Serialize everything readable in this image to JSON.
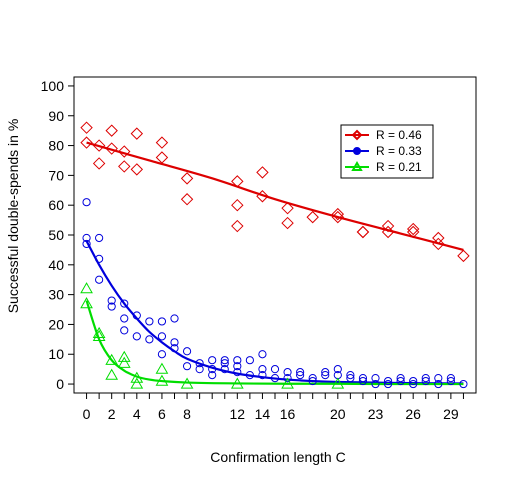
{
  "chart_data": {
    "type": "scatter",
    "xlabel": "Confirmation length C",
    "ylabel": "Successful double-spends in %",
    "xlim": [
      -1,
      31
    ],
    "ylim": [
      -3,
      103
    ],
    "x_ticks": [
      0,
      2,
      4,
      6,
      8,
      12,
      14,
      16,
      20,
      23,
      26,
      29
    ],
    "x_tick_labels": [
      "0",
      "2",
      "4",
      "6",
      "8",
      "12",
      "14",
      "16",
      "20",
      "23",
      "26",
      "29"
    ],
    "y_ticks": [
      0,
      10,
      20,
      30,
      40,
      50,
      60,
      70,
      80,
      90,
      100
    ],
    "y_tick_labels": [
      "0",
      "10",
      "20",
      "30",
      "40",
      "50",
      "60",
      "70",
      "80",
      "90",
      "100"
    ],
    "grid": false,
    "legend_position": "top-right",
    "legend": [
      {
        "label": "R = 0.46",
        "color": "#dd0000",
        "marker": "diamond"
      },
      {
        "label": "R = 0.33",
        "color": "#0000dd",
        "marker": "circle"
      },
      {
        "label": "R = 0.21",
        "color": "#00dd00",
        "marker": "triangle"
      }
    ],
    "series": [
      {
        "color": "#dd0000",
        "marker": "diamond",
        "points": [
          [
            0,
            86
          ],
          [
            0,
            81
          ],
          [
            1,
            80
          ],
          [
            1,
            74
          ],
          [
            2,
            85
          ],
          [
            2,
            79
          ],
          [
            3,
            78
          ],
          [
            3,
            73
          ],
          [
            4,
            84
          ],
          [
            4,
            72
          ],
          [
            6,
            81
          ],
          [
            6,
            76
          ],
          [
            8,
            69
          ],
          [
            8,
            62
          ],
          [
            12,
            68
          ],
          [
            12,
            60
          ],
          [
            12,
            53
          ],
          [
            14,
            71
          ],
          [
            14,
            63
          ],
          [
            16,
            59
          ],
          [
            16,
            54
          ],
          [
            18,
            56
          ],
          [
            20,
            57
          ],
          [
            20,
            56
          ],
          [
            22,
            51
          ],
          [
            22,
            51
          ],
          [
            24,
            53
          ],
          [
            24,
            51
          ],
          [
            26,
            52
          ],
          [
            26,
            51
          ],
          [
            28,
            49
          ],
          [
            28,
            47
          ],
          [
            30,
            43
          ]
        ],
        "fit": [
          [
            0,
            81
          ],
          [
            5,
            75
          ],
          [
            10,
            69
          ],
          [
            15,
            62
          ],
          [
            20,
            56
          ],
          [
            25,
            50.5
          ],
          [
            30,
            45
          ]
        ]
      },
      {
        "color": "#0000dd",
        "marker": "circle",
        "points": [
          [
            0,
            61
          ],
          [
            0,
            49
          ],
          [
            0,
            47
          ],
          [
            1,
            49
          ],
          [
            1,
            42
          ],
          [
            1,
            35
          ],
          [
            2,
            28
          ],
          [
            2,
            26
          ],
          [
            3,
            27
          ],
          [
            3,
            22
          ],
          [
            3,
            18
          ],
          [
            4,
            23
          ],
          [
            4,
            16
          ],
          [
            5,
            21
          ],
          [
            5,
            15
          ],
          [
            6,
            21
          ],
          [
            6,
            16
          ],
          [
            6,
            10
          ],
          [
            7,
            22
          ],
          [
            7,
            14
          ],
          [
            7,
            12
          ],
          [
            8,
            11
          ],
          [
            8,
            6
          ],
          [
            9,
            7
          ],
          [
            9,
            5
          ],
          [
            10,
            8
          ],
          [
            10,
            5
          ],
          [
            10,
            3
          ],
          [
            11,
            8
          ],
          [
            11,
            7
          ],
          [
            11,
            5
          ],
          [
            12,
            8
          ],
          [
            12,
            6
          ],
          [
            12,
            4
          ],
          [
            13,
            8
          ],
          [
            13,
            3
          ],
          [
            14,
            10
          ],
          [
            14,
            5
          ],
          [
            14,
            3
          ],
          [
            15,
            5
          ],
          [
            15,
            2
          ],
          [
            16,
            4
          ],
          [
            16,
            2
          ],
          [
            17,
            3
          ],
          [
            17,
            4
          ],
          [
            18,
            2
          ],
          [
            18,
            1
          ],
          [
            19,
            4
          ],
          [
            19,
            3
          ],
          [
            20,
            5
          ],
          [
            20,
            3
          ],
          [
            21,
            2
          ],
          [
            21,
            3
          ],
          [
            22,
            2
          ],
          [
            22,
            1
          ],
          [
            23,
            2
          ],
          [
            23,
            0
          ],
          [
            24,
            1
          ],
          [
            24,
            0
          ],
          [
            25,
            2
          ],
          [
            25,
            1
          ],
          [
            26,
            1
          ],
          [
            26,
            0
          ],
          [
            27,
            2
          ],
          [
            27,
            1
          ],
          [
            28,
            2
          ],
          [
            28,
            0
          ],
          [
            29,
            1
          ],
          [
            29,
            2
          ],
          [
            30,
            0
          ]
        ],
        "fit": [
          [
            0,
            48
          ],
          [
            1,
            40
          ],
          [
            2,
            33
          ],
          [
            3,
            27
          ],
          [
            4,
            22
          ],
          [
            5,
            17.5
          ],
          [
            6,
            14
          ],
          [
            7,
            11
          ],
          [
            8,
            8.5
          ],
          [
            10,
            5.5
          ],
          [
            12,
            3.5
          ],
          [
            14,
            2.3
          ],
          [
            16,
            1.5
          ],
          [
            18,
            1
          ],
          [
            20,
            0.7
          ],
          [
            24,
            0.4
          ],
          [
            30,
            0.2
          ]
        ]
      },
      {
        "color": "#00dd00",
        "marker": "triangle",
        "points": [
          [
            0,
            32
          ],
          [
            0,
            27
          ],
          [
            1,
            17
          ],
          [
            1,
            16
          ],
          [
            2,
            8
          ],
          [
            2,
            3
          ],
          [
            3,
            9
          ],
          [
            3,
            7
          ],
          [
            4,
            2
          ],
          [
            4,
            0
          ],
          [
            6,
            5
          ],
          [
            6,
            1
          ],
          [
            8,
            0
          ],
          [
            12,
            0
          ],
          [
            16,
            0
          ],
          [
            20,
            0
          ]
        ],
        "fit": [
          [
            0,
            28
          ],
          [
            1,
            15
          ],
          [
            2,
            8
          ],
          [
            3,
            4.5
          ],
          [
            4,
            2.5
          ],
          [
            5,
            1.5
          ],
          [
            6,
            1
          ],
          [
            8,
            0.5
          ],
          [
            12,
            0.2
          ],
          [
            16,
            0.1
          ],
          [
            20,
            0.1
          ],
          [
            24,
            0
          ],
          [
            30,
            0
          ]
        ]
      }
    ]
  }
}
